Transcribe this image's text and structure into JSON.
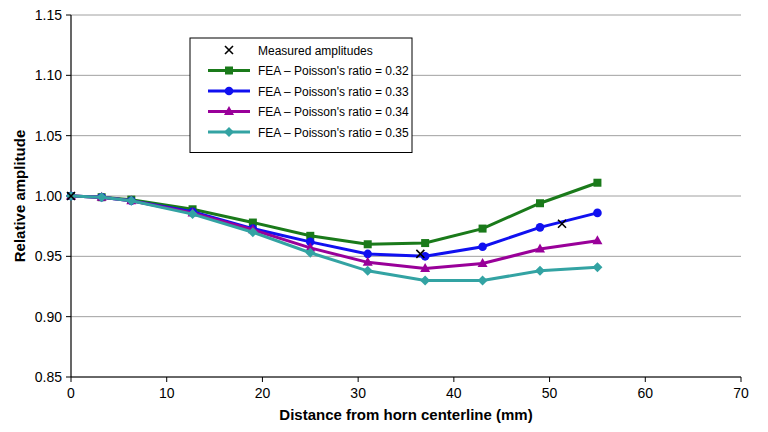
{
  "chart_data": {
    "type": "line",
    "x_label": "Distance from horn centerline (mm)",
    "y_label": "Relative amplitude",
    "xlim": [
      0,
      70
    ],
    "xticks": [
      0,
      10,
      20,
      30,
      40,
      50,
      60,
      70
    ],
    "ylim": [
      0.85,
      1.15
    ],
    "yticks": [
      0.85,
      {
        "value": 0.9,
        "label": "0.90"
      },
      0.95,
      {
        "value": 1.0,
        "label": "1.00"
      },
      1.05,
      {
        "value": 1.1,
        "label": "1.10"
      },
      1.15
    ],
    "grid": true,
    "legend": "upper left",
    "series": [
      {
        "name": "Measured amplitudes",
        "type": "scatter",
        "marker": "x",
        "color": "#000000",
        "x": [
          0,
          36.5,
          51.3
        ],
        "values": [
          1.0,
          0.952,
          0.977
        ]
      },
      {
        "name": "FEA – Poisson's ratio = 0.32",
        "type": "line",
        "marker": "square",
        "color": "#1a7a1a",
        "x": [
          0,
          3.2,
          6.3,
          12.7,
          19,
          25,
          31,
          37,
          43,
          49,
          55
        ],
        "values": [
          1.0,
          0.999,
          0.997,
          0.989,
          0.978,
          0.967,
          0.96,
          0.961,
          0.973,
          0.994,
          1.011
        ]
      },
      {
        "name": "FEA – Poisson's ratio = 0.33",
        "type": "line",
        "marker": "circle",
        "color": "#1010f0",
        "x": [
          0,
          3.2,
          6.3,
          12.7,
          19,
          25,
          31,
          37,
          43,
          49,
          55
        ],
        "values": [
          1.0,
          0.999,
          0.996,
          0.987,
          0.973,
          0.962,
          0.952,
          0.95,
          0.958,
          0.974,
          0.986
        ]
      },
      {
        "name": "FEA – Poisson's ratio = 0.34",
        "type": "line",
        "marker": "triangle",
        "color": "#990099",
        "x": [
          0,
          3.2,
          6.3,
          12.7,
          19,
          25,
          31,
          37,
          43,
          49,
          55
        ],
        "values": [
          1.0,
          0.999,
          0.996,
          0.986,
          0.972,
          0.957,
          0.945,
          0.94,
          0.944,
          0.956,
          0.963
        ]
      },
      {
        "name": "FEA – Poisson's ratio = 0.35",
        "type": "line",
        "marker": "diamond",
        "color": "#33a3a3",
        "x": [
          0,
          3.2,
          6.3,
          12.7,
          19,
          25,
          31,
          37,
          43,
          49,
          55
        ],
        "values": [
          1.0,
          0.999,
          0.996,
          0.985,
          0.97,
          0.953,
          0.938,
          0.93,
          0.93,
          0.938,
          0.941
        ]
      }
    ]
  }
}
